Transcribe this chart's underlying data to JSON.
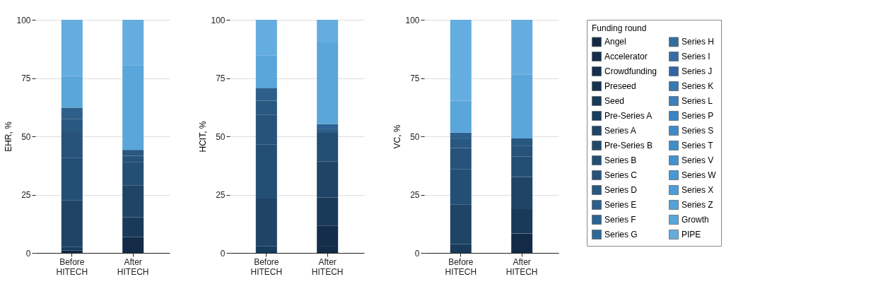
{
  "chart_data": [
    {
      "type": "bar",
      "stacked": true,
      "ylabel": "EHR, %",
      "categories": [
        "Before HITECH",
        "After HITECH"
      ],
      "ylim": [
        0,
        100
      ],
      "yticks": [
        0,
        25,
        50,
        75,
        100
      ],
      "grid": "y",
      "series": [
        {
          "color": "#132b47",
          "values": [
            1,
            6.8
          ]
        },
        {
          "color": "#142d4a",
          "values": [
            null,
            null
          ]
        },
        {
          "color": "#152f4d",
          "values": [
            null,
            null
          ]
        },
        {
          "color": "#173250",
          "values": [
            null,
            null
          ]
        },
        {
          "color": "#1a3a5a",
          "values": [
            null,
            8.5
          ]
        },
        {
          "color": "#163d5e",
          "values": [
            1.5,
            null
          ]
        },
        {
          "color": "#1f4465",
          "values": [
            20,
            13.7
          ]
        },
        {
          "color": "#214868",
          "values": [
            null,
            null
          ]
        },
        {
          "color": "#234f75",
          "values": [
            18.3,
            10
          ]
        },
        {
          "color": "#27527a",
          "values": [
            10.7,
            2.7
          ]
        },
        {
          "color": "#285780",
          "values": [
            6,
            2.5
          ]
        },
        {
          "color": "#2d5f8a",
          "values": [
            4.8,
            null
          ]
        },
        {
          "color": "#2c6294",
          "values": [
            null,
            null
          ]
        },
        {
          "color": "#2e6899",
          "values": [
            null,
            null
          ]
        },
        {
          "color": "#306ea0",
          "values": [
            null,
            null
          ]
        },
        {
          "color": "#336fa5",
          "values": [
            null,
            null
          ]
        },
        {
          "color": "#3166a6",
          "values": [
            null,
            null
          ]
        },
        {
          "color": "#3679b3",
          "values": [
            null,
            null
          ]
        },
        {
          "color": "#3a80bb",
          "values": [
            null,
            null
          ]
        },
        {
          "color": "#3b83c2",
          "values": [
            null,
            null
          ]
        },
        {
          "color": "#3e89c8",
          "values": [
            null,
            null
          ]
        },
        {
          "color": "#3e8ecc",
          "values": [
            null,
            null
          ]
        },
        {
          "color": "#4392d0",
          "values": [
            null,
            null
          ]
        },
        {
          "color": "#4499d6",
          "values": [
            null,
            null
          ]
        },
        {
          "color": "#4a9dd9",
          "values": [
            null,
            null
          ]
        },
        {
          "color": "#55a3da",
          "values": [
            null,
            null
          ]
        },
        {
          "color": "#5aa6db",
          "values": [
            13.5,
            36.3
          ]
        },
        {
          "color": "#64ade0",
          "values": [
            24.2,
            19.5
          ]
        }
      ]
    },
    {
      "type": "bar",
      "stacked": true,
      "ylabel": "HCIT, %",
      "categories": [
        "Before HITECH",
        "After HITECH"
      ],
      "ylim": [
        0,
        100
      ],
      "yticks": [
        0,
        25,
        50,
        75,
        100
      ],
      "grid": "y",
      "series": [
        {
          "color": "#132b47",
          "values": [
            null,
            3
          ]
        },
        {
          "color": "#142d4a",
          "values": [
            null,
            8.6
          ]
        },
        {
          "color": "#152f4d",
          "values": [
            null,
            null
          ]
        },
        {
          "color": "#173250",
          "values": [
            null,
            null
          ]
        },
        {
          "color": "#1a3a5a",
          "values": [
            null,
            12.2
          ]
        },
        {
          "color": "#163d5e",
          "values": [
            2.8,
            null
          ]
        },
        {
          "color": "#1f4465",
          "values": [
            20.5,
            15.4
          ]
        },
        {
          "color": "#214868",
          "values": [
            null,
            null
          ]
        },
        {
          "color": "#234f75",
          "values": [
            23.3,
            12.3
          ]
        },
        {
          "color": "#27527a",
          "values": [
            12.7,
            null
          ]
        },
        {
          "color": "#285780",
          "values": [
            6,
            null
          ]
        },
        {
          "color": "#2d5f8a",
          "values": [
            5.3,
            1.8
          ]
        },
        {
          "color": "#2c6294",
          "values": [
            null,
            2
          ]
        },
        {
          "color": "#2e6899",
          "values": [
            null,
            null
          ]
        },
        {
          "color": "#306ea0",
          "values": [
            null,
            null
          ]
        },
        {
          "color": "#336fa5",
          "values": [
            null,
            null
          ]
        },
        {
          "color": "#3166a6",
          "values": [
            null,
            null
          ]
        },
        {
          "color": "#3679b3",
          "values": [
            null,
            null
          ]
        },
        {
          "color": "#3a80bb",
          "values": [
            null,
            null
          ]
        },
        {
          "color": "#3b83c2",
          "values": [
            null,
            null
          ]
        },
        {
          "color": "#3e89c8",
          "values": [
            null,
            null
          ]
        },
        {
          "color": "#3e8ecc",
          "values": [
            null,
            null
          ]
        },
        {
          "color": "#4392d0",
          "values": [
            null,
            null
          ]
        },
        {
          "color": "#4499d6",
          "values": [
            null,
            null
          ]
        },
        {
          "color": "#4a9dd9",
          "values": [
            null,
            null
          ]
        },
        {
          "color": "#55a3da",
          "values": [
            null,
            null
          ]
        },
        {
          "color": "#5aa6db",
          "values": [
            14.2,
            35
          ]
        },
        {
          "color": "#64ade0",
          "values": [
            15.2,
            9.7
          ]
        }
      ]
    },
    {
      "type": "bar",
      "stacked": true,
      "ylabel": "VC, %",
      "categories": [
        "Before HITECH",
        "After HITECH"
      ],
      "ylim": [
        0,
        100
      ],
      "yticks": [
        0,
        25,
        50,
        75,
        100
      ],
      "grid": "y",
      "legend": "right",
      "legend_title": "Funding round",
      "series": [
        {
          "name": "Angel",
          "color": "#132b47",
          "values": [
            null,
            8.3
          ]
        },
        {
          "name": "Accelerator",
          "color": "#142d4a",
          "values": [
            null,
            null
          ]
        },
        {
          "name": "Crowdfunding",
          "color": "#152f4d",
          "values": [
            null,
            null
          ]
        },
        {
          "name": "Preseed",
          "color": "#173250",
          "values": [
            null,
            null
          ]
        },
        {
          "name": "Seed",
          "color": "#1a3a5a",
          "values": [
            3.8,
            10.5
          ]
        },
        {
          "name": "Pre-Series A",
          "color": "#163d5e",
          "values": [
            null,
            null
          ]
        },
        {
          "name": "Series A",
          "color": "#1f4465",
          "values": [
            17,
            13.8
          ]
        },
        {
          "name": "Pre-Series B",
          "color": "#214868",
          "values": [
            null,
            null
          ]
        },
        {
          "name": "Series B",
          "color": "#234f75",
          "values": [
            15.2,
            8.7
          ]
        },
        {
          "name": "Series C",
          "color": "#27527a",
          "values": [
            9,
            4.5
          ]
        },
        {
          "name": "Series D",
          "color": "#285780",
          "values": [
            3.8,
            3.3
          ]
        },
        {
          "name": "Series E",
          "color": "#2d5f8a",
          "values": [
            2.8,
            null
          ]
        },
        {
          "name": "Series F",
          "color": "#2c6294",
          "values": [
            null,
            null
          ]
        },
        {
          "name": "Series G",
          "color": "#2e6899",
          "values": [
            null,
            null
          ]
        },
        {
          "name": "Series H",
          "color": "#306ea0",
          "values": [
            null,
            null
          ]
        },
        {
          "name": "Series I",
          "color": "#336fa5",
          "values": [
            null,
            null
          ]
        },
        {
          "name": "Series J",
          "color": "#3166a6",
          "values": [
            null,
            null
          ]
        },
        {
          "name": "Series K",
          "color": "#3679b3",
          "values": [
            null,
            null
          ]
        },
        {
          "name": "Series L",
          "color": "#3a80bb",
          "values": [
            null,
            null
          ]
        },
        {
          "name": "Series P",
          "color": "#3b83c2",
          "values": [
            null,
            null
          ]
        },
        {
          "name": "Series S",
          "color": "#3e89c8",
          "values": [
            null,
            null
          ]
        },
        {
          "name": "Series T",
          "color": "#3e8ecc",
          "values": [
            null,
            null
          ]
        },
        {
          "name": "Series V",
          "color": "#4392d0",
          "values": [
            null,
            null
          ]
        },
        {
          "name": "Series W",
          "color": "#4499d6",
          "values": [
            null,
            null
          ]
        },
        {
          "name": "Series X",
          "color": "#4a9dd9",
          "values": [
            null,
            null
          ]
        },
        {
          "name": "Series Z",
          "color": "#55a3da",
          "values": [
            null,
            null
          ]
        },
        {
          "name": "Growth",
          "color": "#5aa6db",
          "values": [
            13.7,
            27.5
          ]
        },
        {
          "name": "PIPE",
          "color": "#64ade0",
          "values": [
            34.7,
            23.4
          ]
        }
      ]
    }
  ]
}
